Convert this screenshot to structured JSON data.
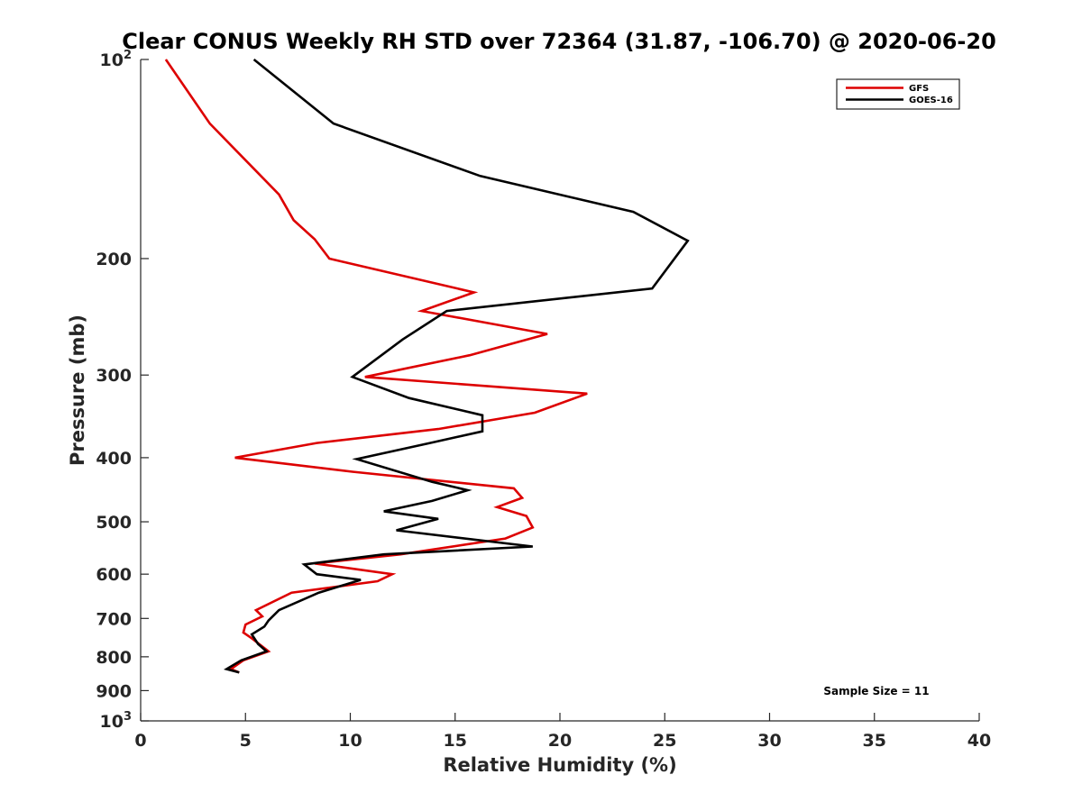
{
  "chart_data": {
    "type": "line",
    "title": "Clear CONUS Weekly RH STD over 72364 (31.87, -106.70) @ 2020-06-20",
    "xlabel": "Relative Humidity (%)",
    "ylabel": "Pressure (mb)",
    "xlim": [
      0,
      40
    ],
    "ylim": [
      100,
      1000
    ],
    "y_scale": "log",
    "y_reversed": true,
    "x_ticks": [
      "0",
      "5",
      "10",
      "15",
      "20",
      "25",
      "30",
      "35",
      "40"
    ],
    "y_ticks": [
      {
        "value": 100,
        "label": "10",
        "sup": "2"
      },
      {
        "value": 200,
        "label": "200",
        "sup": ""
      },
      {
        "value": 300,
        "label": "300",
        "sup": ""
      },
      {
        "value": 400,
        "label": "400",
        "sup": ""
      },
      {
        "value": 500,
        "label": "500",
        "sup": ""
      },
      {
        "value": 600,
        "label": "600",
        "sup": ""
      },
      {
        "value": 700,
        "label": "700",
        "sup": ""
      },
      {
        "value": 800,
        "label": "800",
        "sup": ""
      },
      {
        "value": 900,
        "label": "900",
        "sup": ""
      },
      {
        "value": 1000,
        "label": "10",
        "sup": "3"
      }
    ],
    "grid": false,
    "legend_position": "top-right",
    "annotation": "Sample Size = 11",
    "series": [
      {
        "name": "GFS",
        "color": "#dd0000",
        "points": [
          [
            1.2,
            100
          ],
          [
            3.3,
            125
          ],
          [
            6.6,
            160
          ],
          [
            7.3,
            175
          ],
          [
            8.3,
            187
          ],
          [
            9.0,
            200
          ],
          [
            15.9,
            225
          ],
          [
            13.4,
            240
          ],
          [
            19.4,
            260
          ],
          [
            15.7,
            280
          ],
          [
            10.7,
            302
          ],
          [
            21.3,
            320
          ],
          [
            18.8,
            342
          ],
          [
            14.2,
            362
          ],
          [
            8.4,
            380
          ],
          [
            4.5,
            400
          ],
          [
            10.1,
            420
          ],
          [
            17.8,
            445
          ],
          [
            18.2,
            460
          ],
          [
            17.0,
            475
          ],
          [
            18.4,
            490
          ],
          [
            18.7,
            510
          ],
          [
            17.4,
            530
          ],
          [
            12.4,
            560
          ],
          [
            8.3,
            578
          ],
          [
            12.0,
            600
          ],
          [
            11.3,
            615
          ],
          [
            7.2,
            640
          ],
          [
            5.5,
            680
          ],
          [
            5.8,
            695
          ],
          [
            5.0,
            715
          ],
          [
            4.9,
            735
          ],
          [
            5.3,
            750
          ],
          [
            6.1,
            785
          ],
          [
            4.9,
            810
          ],
          [
            4.3,
            835
          ],
          [
            4.7,
            845
          ]
        ]
      },
      {
        "name": "GOES-16",
        "color": "#000000",
        "points": [
          [
            5.4,
            100
          ],
          [
            9.2,
            125
          ],
          [
            16.2,
            150
          ],
          [
            23.5,
            170
          ],
          [
            26.1,
            188
          ],
          [
            24.4,
            222
          ],
          [
            14.6,
            240
          ],
          [
            12.5,
            265
          ],
          [
            10.1,
            302
          ],
          [
            12.8,
            325
          ],
          [
            16.3,
            345
          ],
          [
            16.3,
            365
          ],
          [
            13.8,
            380
          ],
          [
            10.3,
            402
          ],
          [
            13.9,
            435
          ],
          [
            15.6,
            448
          ],
          [
            13.9,
            465
          ],
          [
            11.6,
            482
          ],
          [
            14.2,
            495
          ],
          [
            12.2,
            515
          ],
          [
            18.7,
            545
          ],
          [
            11.6,
            560
          ],
          [
            7.8,
            580
          ],
          [
            8.4,
            600
          ],
          [
            10.5,
            612
          ],
          [
            8.5,
            640
          ],
          [
            6.6,
            680
          ],
          [
            6.1,
            705
          ],
          [
            5.9,
            720
          ],
          [
            5.3,
            740
          ],
          [
            5.6,
            765
          ],
          [
            6.0,
            785
          ],
          [
            4.8,
            810
          ],
          [
            4.1,
            835
          ],
          [
            4.7,
            845
          ]
        ]
      }
    ]
  }
}
